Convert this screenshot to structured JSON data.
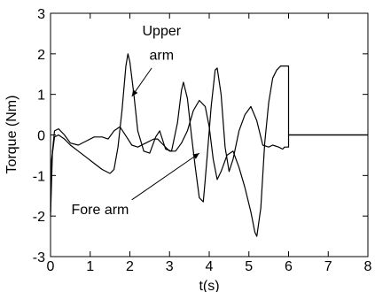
{
  "chart_data": {
    "type": "line",
    "xlabel": "t(s)",
    "ylabel": "Torque (Nm)",
    "xlim": [
      0,
      8
    ],
    "ylim": [
      -3,
      3
    ],
    "xticks": [
      "0",
      "1",
      "2",
      "3",
      "4",
      "5",
      "6",
      "7",
      "8"
    ],
    "yticks": [
      "3",
      "2",
      "1",
      "0",
      "-1",
      "-2",
      "-3"
    ],
    "grid": false,
    "series": [
      {
        "name": "Upper arm",
        "x": [
          0,
          0.03,
          0.1,
          0.2,
          0.35,
          0.5,
          0.7,
          0.9,
          1.1,
          1.3,
          1.5,
          1.6,
          1.7,
          1.8,
          1.9,
          1.95,
          2.0,
          2.1,
          2.2,
          2.35,
          2.5,
          2.65,
          2.75,
          2.9,
          3.05,
          3.2,
          3.3,
          3.35,
          3.45,
          3.55,
          3.65,
          3.75,
          3.85,
          3.9,
          3.95,
          4.05,
          4.15,
          4.2,
          4.3,
          4.4,
          4.5,
          4.6,
          4.75,
          4.9,
          5.05,
          5.2,
          5.35,
          5.5,
          5.6,
          5.75,
          5.85,
          5.9,
          5.95,
          6.0,
          6.0,
          8.0
        ],
        "y": [
          -1.9,
          -0.6,
          -0.05,
          0.0,
          -0.1,
          -0.25,
          -0.4,
          -0.55,
          -0.7,
          -0.85,
          -0.95,
          -0.85,
          -0.3,
          0.6,
          1.7,
          2.0,
          1.8,
          1.0,
          0.1,
          -0.4,
          -0.45,
          -0.05,
          0.1,
          -0.35,
          -0.4,
          0.3,
          1.1,
          1.3,
          0.9,
          0.0,
          -0.8,
          -1.55,
          -1.65,
          -1.1,
          -0.5,
          0.7,
          1.6,
          1.65,
          1.0,
          -0.3,
          -0.9,
          -0.6,
          0.1,
          0.5,
          0.7,
          0.35,
          -0.25,
          -0.3,
          -0.25,
          -0.3,
          -0.35,
          -0.3,
          -0.3,
          -0.3,
          0.0,
          0.0
        ]
      },
      {
        "name": "Fore arm",
        "x": [
          0,
          0.05,
          0.1,
          0.2,
          0.35,
          0.5,
          0.7,
          0.9,
          1.1,
          1.3,
          1.45,
          1.6,
          1.75,
          1.85,
          1.95,
          2.05,
          2.2,
          2.4,
          2.6,
          2.7,
          2.85,
          3.0,
          3.15,
          3.3,
          3.45,
          3.6,
          3.75,
          3.9,
          4.0,
          4.1,
          4.2,
          4.3,
          4.45,
          4.6,
          4.75,
          4.9,
          5.05,
          5.15,
          5.2,
          5.3,
          5.4,
          5.5,
          5.6,
          5.7,
          5.8,
          5.9,
          6.0,
          6.0,
          8.0
        ],
        "y": [
          -2.0,
          -0.4,
          0.1,
          0.15,
          0.0,
          -0.2,
          -0.25,
          -0.15,
          -0.05,
          -0.05,
          -0.1,
          0.1,
          0.2,
          0.05,
          -0.1,
          -0.25,
          -0.3,
          -0.2,
          -0.1,
          -0.1,
          -0.25,
          -0.4,
          -0.4,
          -0.2,
          0.1,
          0.6,
          0.85,
          0.7,
          0.2,
          -0.6,
          -1.1,
          -0.9,
          -0.5,
          -0.4,
          -0.8,
          -1.3,
          -1.9,
          -2.4,
          -2.5,
          -1.8,
          -0.2,
          0.8,
          1.4,
          1.6,
          1.7,
          1.7,
          1.7,
          0.0,
          0.0
        ]
      }
    ],
    "annotations": [
      {
        "text": "Upper",
        "at": [
          2.8,
          2.45
        ]
      },
      {
        "text": "arm",
        "at": [
          2.8,
          1.85
        ]
      },
      {
        "text": "Fore arm",
        "at": [
          1.25,
          -1.95
        ]
      }
    ]
  }
}
